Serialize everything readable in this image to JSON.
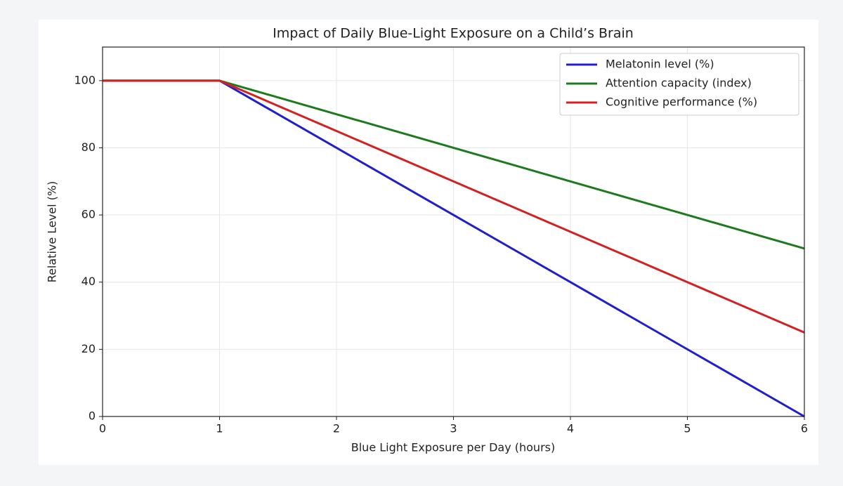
{
  "chart_data": {
    "type": "line",
    "title": "Impact of Daily Blue-Light Exposure on a Child’s Brain",
    "x_label": "Blue Light Exposure per Day (hours)",
    "y_label": "Relative Level (%)",
    "x": [
      0,
      1,
      2,
      3,
      4,
      5,
      6
    ],
    "series": [
      {
        "name": "Melatonin level (%)",
        "color": "#1f1fd0",
        "values": [
          100,
          100,
          80,
          60,
          40,
          20,
          0
        ]
      },
      {
        "name": "Attention capacity (index)",
        "color": "#1e7a1e",
        "values": [
          100,
          100,
          90,
          80,
          70,
          60,
          50
        ]
      },
      {
        "name": "Cognitive performance (%)",
        "color": "#d42020",
        "values": [
          100,
          100,
          85,
          70,
          55,
          40,
          25
        ]
      }
    ],
    "xlim": [
      0,
      6
    ],
    "xticks": [
      0,
      1,
      2,
      3,
      4,
      5,
      6
    ],
    "ylim": [
      0,
      110
    ],
    "yticks": [
      0,
      20,
      40,
      60,
      80,
      100
    ],
    "grid": true,
    "legend": "upper right"
  }
}
